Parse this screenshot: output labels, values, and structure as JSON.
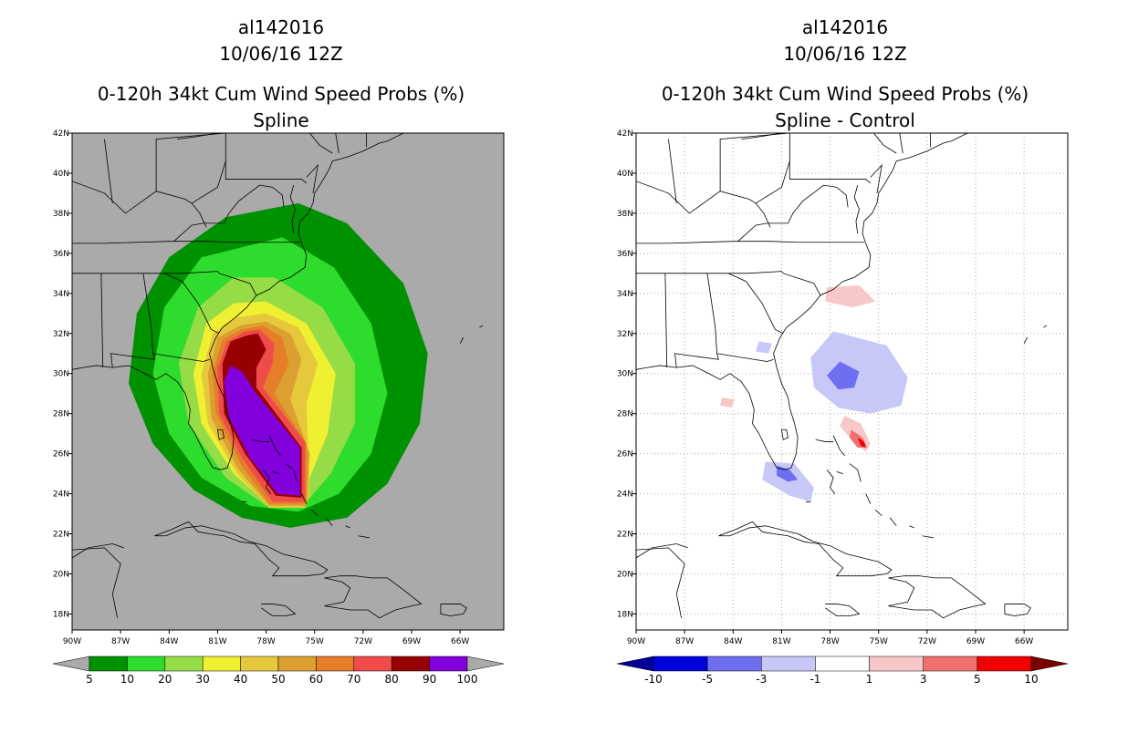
{
  "colors": {
    "ocean_left": "#aaaaaa",
    "land_left": "#aaaaaa",
    "background_right": "#ffffff",
    "coast": "#000000",
    "grid_right": "#aaaaaa"
  },
  "chart_data": [
    {
      "type": "heatmap",
      "title": [
        "al142016",
        "10/06/16 12Z",
        "0-120h 34kt Cum Wind Speed Probs (%)",
        "Spline"
      ],
      "x_ticks": [
        "90W",
        "87W",
        "84W",
        "81W",
        "78W",
        "75W",
        "72W",
        "69W",
        "66W"
      ],
      "y_ticks": [
        "18N",
        "20N",
        "22N",
        "24N",
        "26N",
        "28N",
        "30N",
        "32N",
        "34N",
        "36N",
        "38N",
        "40N",
        "42N"
      ],
      "xlim": [
        -90,
        -63.3
      ],
      "ylim": [
        17.2,
        42
      ],
      "grid": false,
      "colorbar": {
        "labels": [
          "5",
          "10",
          "20",
          "30",
          "40",
          "50",
          "60",
          "70",
          "80",
          "90",
          "100"
        ],
        "colors": [
          "#009100",
          "#2edc2e",
          "#96dc46",
          "#f0f032",
          "#e6c83c",
          "#dca032",
          "#e67d28",
          "#f04b4b",
          "#960000",
          "#8200dc"
        ],
        "extend": "both"
      },
      "levels": [
        {
          "level": 5,
          "color": "#009100",
          "polygon": [
            [
              -76,
              38.5
            ],
            [
              -73,
              37.5
            ],
            [
              -69.5,
              34.5
            ],
            [
              -68,
              31
            ],
            [
              -68.5,
              27.5
            ],
            [
              -70.5,
              24.5
            ],
            [
              -73,
              22.8
            ],
            [
              -76.5,
              22.3
            ],
            [
              -79.5,
              22.8
            ],
            [
              -82.5,
              24.2
            ],
            [
              -85,
              26.5
            ],
            [
              -86.5,
              29.5
            ],
            [
              -86,
              33
            ],
            [
              -84,
              35.8
            ],
            [
              -80.5,
              37.8
            ]
          ]
        },
        {
          "level": 10,
          "color": "#2edc2e",
          "polygon": [
            [
              -77,
              36.8
            ],
            [
              -73.8,
              35.3
            ],
            [
              -71.5,
              32.5
            ],
            [
              -70.5,
              29
            ],
            [
              -71.5,
              26
            ],
            [
              -73.5,
              24
            ],
            [
              -76,
              23.1
            ],
            [
              -79,
              23.4
            ],
            [
              -82,
              24.8
            ],
            [
              -84,
              27
            ],
            [
              -85,
              30
            ],
            [
              -84.3,
              33.3
            ],
            [
              -82,
              35.8
            ]
          ]
        },
        {
          "level": 20,
          "color": "#96dc46",
          "polygon": [
            [
              -77.5,
              34.8
            ],
            [
              -74.5,
              33.3
            ],
            [
              -72.5,
              30.5
            ],
            [
              -72.5,
              27.5
            ],
            [
              -74,
              25
            ],
            [
              -75.5,
              23.6
            ],
            [
              -78,
              23.4
            ],
            [
              -80.5,
              24.8
            ],
            [
              -82.8,
              27.5
            ],
            [
              -83.4,
              30.5
            ],
            [
              -82.2,
              33.3
            ],
            [
              -80,
              34.8
            ]
          ]
        },
        {
          "level": 30,
          "color": "#f0f032",
          "polygon": [
            [
              -78,
              33.6
            ],
            [
              -75.5,
              32.5
            ],
            [
              -73.7,
              30
            ],
            [
              -74.2,
              27
            ],
            [
              -75.3,
              24.8
            ],
            [
              -75.6,
              23.4
            ],
            [
              -77.8,
              23.4
            ],
            [
              -80,
              25
            ],
            [
              -82,
              27.5
            ],
            [
              -82.5,
              30
            ],
            [
              -81.7,
              32.5
            ],
            [
              -80,
              33.5
            ]
          ]
        },
        {
          "level": 40,
          "color": "#e6c83c",
          "polygon": [
            [
              -78,
              33
            ],
            [
              -76,
              32.3
            ],
            [
              -74.8,
              30.5
            ],
            [
              -75.5,
              28.5
            ],
            [
              -75.3,
              24
            ],
            [
              -75.6,
              23.3
            ],
            [
              -77.8,
              23.3
            ],
            [
              -79.8,
              25
            ],
            [
              -81.6,
              27.5
            ],
            [
              -82,
              30
            ],
            [
              -81.3,
              32
            ],
            [
              -79.8,
              32.8
            ]
          ]
        },
        {
          "level": 50,
          "color": "#dca032",
          "polygon": [
            [
              -78,
              32.6
            ],
            [
              -76.5,
              32
            ],
            [
              -75.8,
              30.7
            ],
            [
              -76.5,
              28.7
            ],
            [
              -75.3,
              26
            ],
            [
              -75.5,
              23.4
            ],
            [
              -77.8,
              23.4
            ],
            [
              -79.8,
              25.3
            ],
            [
              -81.4,
              27.8
            ],
            [
              -81.6,
              30
            ],
            [
              -81,
              31.8
            ],
            [
              -79.6,
              32.4
            ]
          ]
        },
        {
          "level": 60,
          "color": "#e67d28",
          "polygon": [
            [
              -78.2,
              32.4
            ],
            [
              -77,
              31.8
            ],
            [
              -76.6,
              30.5
            ],
            [
              -77.5,
              29
            ],
            [
              -75.5,
              26.5
            ],
            [
              -75.5,
              23.5
            ],
            [
              -77.8,
              23.5
            ],
            [
              -79.6,
              25.5
            ],
            [
              -81.1,
              28
            ],
            [
              -81.3,
              30
            ],
            [
              -80.7,
              31.7
            ],
            [
              -79.5,
              32.2
            ]
          ]
        },
        {
          "level": 70,
          "color": "#f04b4b",
          "polygon": [
            [
              -78.4,
              32.2
            ],
            [
              -77.5,
              31.5
            ],
            [
              -77.6,
              30.5
            ],
            [
              -78.2,
              29.3
            ],
            [
              -75.6,
              26.6
            ],
            [
              -75.6,
              23.6
            ],
            [
              -77.6,
              23.6
            ],
            [
              -79.5,
              25.8
            ],
            [
              -80.9,
              28
            ],
            [
              -81,
              30.3
            ],
            [
              -80.4,
              31.6
            ],
            [
              -79.3,
              32.1
            ]
          ]
        },
        {
          "level": 80,
          "color": "#960000",
          "polygon": [
            [
              -78.5,
              32
            ],
            [
              -78,
              31.2
            ],
            [
              -78.6,
              30.3
            ],
            [
              -78.6,
              29.3
            ],
            [
              -75.8,
              26.3
            ],
            [
              -75.8,
              23.8
            ],
            [
              -77.4,
              23.9
            ],
            [
              -79.3,
              26
            ],
            [
              -80.6,
              28
            ],
            [
              -80.7,
              30.5
            ],
            [
              -80.2,
              31.6
            ],
            [
              -79.2,
              31.9
            ]
          ]
        },
        {
          "level": 90,
          "color": "#8200dc",
          "polygon": [
            [
              -80.2,
              30.4
            ],
            [
              -79.5,
              30.1
            ],
            [
              -78.7,
              29.1
            ],
            [
              -75.9,
              26.3
            ],
            [
              -75.9,
              23.9
            ],
            [
              -77.3,
              24
            ],
            [
              -79,
              25.8
            ],
            [
              -80.3,
              27.8
            ],
            [
              -80.6,
              29.6
            ]
          ]
        }
      ]
    },
    {
      "type": "heatmap",
      "title": [
        "al142016",
        "10/06/16 12Z",
        "0-120h 34kt Cum Wind Speed Probs (%)",
        "Spline - Control"
      ],
      "x_ticks": [
        "90W",
        "87W",
        "84W",
        "81W",
        "78W",
        "75W",
        "72W",
        "69W",
        "66W"
      ],
      "y_ticks": [
        "18N",
        "20N",
        "22N",
        "24N",
        "26N",
        "28N",
        "30N",
        "32N",
        "34N",
        "36N",
        "38N",
        "40N",
        "42N"
      ],
      "xlim": [
        -90,
        -63.3
      ],
      "ylim": [
        17.2,
        42
      ],
      "grid": true,
      "colorbar": {
        "labels": [
          "-10",
          "-5",
          "-3",
          "-1",
          "1",
          "3",
          "5",
          "10"
        ],
        "colors": [
          "#0000dc",
          "#6e6ef0",
          "#c8c8f8",
          "#ffffff",
          "#f8c8c8",
          "#f07070",
          "#f00000"
        ],
        "low_color": "#000096",
        "high_color": "#780000",
        "extend": "both"
      },
      "levels": [
        {
          "level": -3,
          "color": "#c8c8f8",
          "polygon": [
            [
              -77.8,
              32.1
            ],
            [
              -74.5,
              31.4
            ],
            [
              -73.2,
              29.8
            ],
            [
              -73.6,
              28.4
            ],
            [
              -75.5,
              28
            ],
            [
              -77.5,
              28.3
            ],
            [
              -79,
              29.3
            ],
            [
              -79.2,
              30.8
            ]
          ]
        },
        {
          "level": -5,
          "color": "#6e6ef0",
          "polygon": [
            [
              -77.4,
              30.6
            ],
            [
              -76.2,
              30.1
            ],
            [
              -76.5,
              29.3
            ],
            [
              -77.5,
              29.2
            ],
            [
              -78.2,
              29.9
            ]
          ]
        },
        {
          "level": -3,
          "color": "#c8c8f8",
          "polygon": [
            [
              -82,
              25.6
            ],
            [
              -80.2,
              25.5
            ],
            [
              -79,
              24.3
            ],
            [
              -79.2,
              23.6
            ],
            [
              -80.5,
              23.9
            ],
            [
              -82.2,
              24.7
            ]
          ]
        },
        {
          "level": -5,
          "color": "#6e6ef0",
          "polygon": [
            [
              -81.3,
              25.4
            ],
            [
              -80.5,
              25.2
            ],
            [
              -80,
              24.7
            ],
            [
              -80.6,
              24.6
            ],
            [
              -81.3,
              24.9
            ]
          ]
        },
        {
          "level": -3,
          "color": "#c8c8f8",
          "polygon": [
            [
              -82.4,
              31.6
            ],
            [
              -81.6,
              31.5
            ],
            [
              -81.8,
              31
            ],
            [
              -82.6,
              31.1
            ]
          ]
        },
        {
          "level": 1,
          "color": "#f8c8c8",
          "polygon": [
            [
              -78.2,
              34.3
            ],
            [
              -76.2,
              34.4
            ],
            [
              -75.2,
              33.6
            ],
            [
              -76.6,
              33.3
            ],
            [
              -78.3,
              33.6
            ]
          ]
        },
        {
          "level": 1,
          "color": "#f8c8c8",
          "polygon": [
            [
              -77.1,
              27.9
            ],
            [
              -76.1,
              27.5
            ],
            [
              -75.5,
              26.5
            ],
            [
              -75.8,
              26.1
            ],
            [
              -76.7,
              26.7
            ],
            [
              -77.4,
              27.4
            ]
          ]
        },
        {
          "level": 3,
          "color": "#f07070",
          "polygon": [
            [
              -76.7,
              27.2
            ],
            [
              -76,
              26.8
            ],
            [
              -75.7,
              26.3
            ],
            [
              -76.3,
              26.3
            ],
            [
              -76.8,
              26.8
            ]
          ]
        },
        {
          "level": 5,
          "color": "#f00000",
          "polygon": [
            [
              -76.3,
              26.8
            ],
            [
              -75.9,
              26.6
            ],
            [
              -75.8,
              26.3
            ],
            [
              -76.1,
              26.4
            ]
          ]
        },
        {
          "level": 1,
          "color": "#f8c8c8",
          "polygon": [
            [
              -84.7,
              28.8
            ],
            [
              -83.9,
              28.7
            ],
            [
              -84.1,
              28.3
            ],
            [
              -84.8,
              28.4
            ]
          ]
        }
      ]
    }
  ]
}
